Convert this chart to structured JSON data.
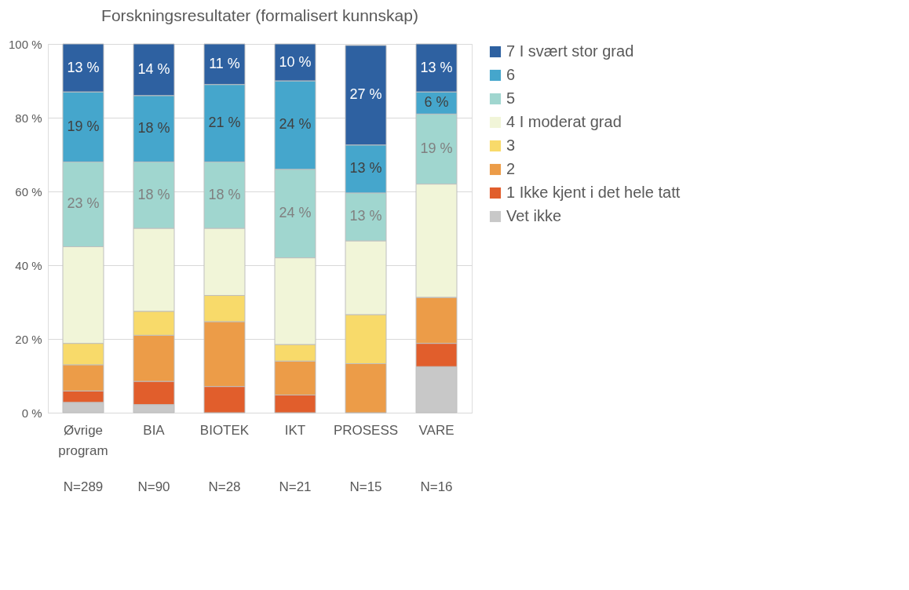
{
  "chart_data": {
    "type": "bar",
    "title": "Forskningsresultater (formalisert kunnskap)",
    "categories": [
      "Øvrige program",
      "BIA",
      "BIOTEK",
      "IKT",
      "PROSESS",
      "VARE"
    ],
    "stacked": true,
    "series": [
      {
        "name": "Vet ikke",
        "color": "#c8c8c8",
        "values": [
          2.8,
          2.2,
          0,
          0,
          0,
          12.5
        ]
      },
      {
        "name": "1 Ikke kjent i det hele tatt",
        "color": "#e15e2c",
        "values": [
          3.1,
          6.3,
          7.1,
          4.8,
          0,
          6.3
        ]
      },
      {
        "name": "2",
        "color": "#ec9c48",
        "values": [
          7.1,
          12.5,
          17.6,
          9.2,
          13.3,
          12.5
        ]
      },
      {
        "name": "3",
        "color": "#f8da6a",
        "values": [
          5.8,
          6.5,
          7.1,
          4.5,
          13.3,
          0
        ]
      },
      {
        "name": "4 I moderat grad",
        "color": "#f1f5d8",
        "values": [
          26.2,
          22.5,
          18.2,
          23.5,
          20,
          30.7
        ]
      },
      {
        "name": "5",
        "color": "#a0d6cf",
        "values": [
          23,
          18,
          18,
          24,
          13,
          19
        ],
        "value_labels": [
          "23 %",
          "18 %",
          "18 %",
          "24 %",
          "13 %",
          "19 %"
        ]
      },
      {
        "name": "6",
        "color": "#45a6cc",
        "values": [
          19,
          18,
          21,
          24,
          13,
          6
        ],
        "value_labels": [
          "19 %",
          "18 %",
          "21 %",
          "24 %",
          "13 %",
          "6 %"
        ]
      },
      {
        "name": "7 I svært stor grad",
        "color": "#2e61a1",
        "values": [
          13,
          14,
          11,
          10,
          27,
          13
        ],
        "value_labels": [
          "13 %",
          "14 %",
          "11 %",
          "10 %",
          "27 %",
          "13 %"
        ]
      }
    ],
    "ylim": [
      0,
      100
    ],
    "yticks": [
      {
        "value": 0,
        "label": "0 %"
      },
      {
        "value": 20,
        "label": "20 %"
      },
      {
        "value": 40,
        "label": "40 %"
      },
      {
        "value": 60,
        "label": "60 %"
      },
      {
        "value": 80,
        "label": "80 %"
      },
      {
        "value": 100,
        "label": "100 %"
      }
    ],
    "grid": "y",
    "legend": "right",
    "annotations": [
      "N=289",
      "N=90",
      "N=28",
      "N=21",
      "N=15",
      "N=16"
    ]
  }
}
